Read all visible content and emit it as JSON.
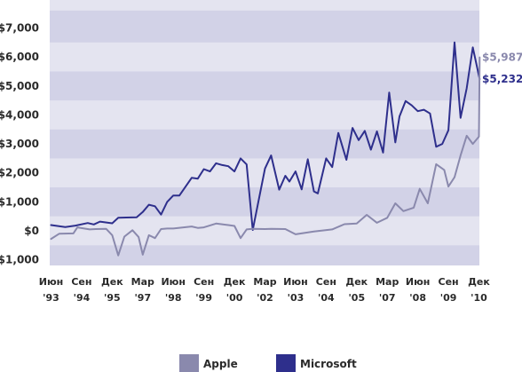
{
  "chart_data": {
    "type": "line",
    "title": "",
    "xlabel": "",
    "ylabel": "",
    "x_range": [
      1993.25,
      2010.95
    ],
    "ylim": [
      -1000,
      7600
    ],
    "y_ticks": [
      {
        "value": 7000,
        "label": "$7,000"
      },
      {
        "value": 6000,
        "label": "$6,000"
      },
      {
        "value": 5000,
        "label": "$5,000"
      },
      {
        "value": 4000,
        "label": "$4,000"
      },
      {
        "value": 3000,
        "label": "$3,000"
      },
      {
        "value": 2000,
        "label": "$2,000"
      },
      {
        "value": 1000,
        "label": "$1,000"
      },
      {
        "value": 0,
        "label": "$0"
      },
      {
        "value": -1000,
        "label": "-$1,000"
      }
    ],
    "x_ticks": [
      {
        "t": 1993.42,
        "month": "Июн",
        "year": "'93"
      },
      {
        "t": 1994.67,
        "month": "Сен",
        "year": "'94"
      },
      {
        "t": 1995.92,
        "month": "Дек",
        "year": "'95"
      },
      {
        "t": 1997.17,
        "month": "Мар",
        "year": "'97"
      },
      {
        "t": 1998.42,
        "month": "Июн",
        "year": "'98"
      },
      {
        "t": 1999.67,
        "month": "Сен",
        "year": "'99"
      },
      {
        "t": 2000.92,
        "month": "Дек",
        "year": "'00"
      },
      {
        "t": 2002.17,
        "month": "Мар",
        "year": "'02"
      },
      {
        "t": 2003.42,
        "month": "Июн",
        "year": "'03"
      },
      {
        "t": 2004.67,
        "month": "Сен",
        "year": "'04"
      },
      {
        "t": 2005.92,
        "month": "Дек",
        "year": "'05"
      },
      {
        "t": 2007.17,
        "month": "Мар",
        "year": "'07"
      },
      {
        "t": 2008.42,
        "month": "Июн",
        "year": "'08"
      },
      {
        "t": 2009.67,
        "month": "Сен",
        "year": "'09"
      },
      {
        "t": 2010.92,
        "month": "Дек",
        "year": "'10"
      }
    ],
    "grid_bands": true,
    "legend_position": "bottom",
    "series": [
      {
        "name": "Microsoft",
        "color": "#2e2f8c",
        "end_label": "$5,232",
        "points": [
          [
            1993.42,
            200
          ],
          [
            1994.0,
            130
          ],
          [
            1994.42,
            180
          ],
          [
            1994.92,
            270
          ],
          [
            1995.17,
            220
          ],
          [
            1995.42,
            320
          ],
          [
            1995.92,
            260
          ],
          [
            1996.17,
            450
          ],
          [
            1996.5,
            460
          ],
          [
            1996.92,
            470
          ],
          [
            1997.17,
            650
          ],
          [
            1997.42,
            900
          ],
          [
            1997.67,
            850
          ],
          [
            1997.92,
            560
          ],
          [
            1998.17,
            1000
          ],
          [
            1998.42,
            1220
          ],
          [
            1998.67,
            1220
          ],
          [
            1999.17,
            1830
          ],
          [
            1999.42,
            1800
          ],
          [
            1999.67,
            2130
          ],
          [
            1999.92,
            2050
          ],
          [
            2000.17,
            2330
          ],
          [
            2000.42,
            2270
          ],
          [
            2000.67,
            2230
          ],
          [
            2000.92,
            2050
          ],
          [
            2001.17,
            2500
          ],
          [
            2001.42,
            2290
          ],
          [
            2001.67,
            30
          ],
          [
            2002.17,
            2150
          ],
          [
            2002.42,
            2600
          ],
          [
            2002.75,
            1420
          ],
          [
            2003.0,
            1900
          ],
          [
            2003.17,
            1700
          ],
          [
            2003.42,
            2050
          ],
          [
            2003.67,
            1430
          ],
          [
            2003.92,
            2470
          ],
          [
            2004.17,
            1360
          ],
          [
            2004.33,
            1290
          ],
          [
            2004.67,
            2500
          ],
          [
            2004.92,
            2200
          ],
          [
            2005.17,
            3380
          ],
          [
            2005.5,
            2450
          ],
          [
            2005.75,
            3550
          ],
          [
            2006.0,
            3130
          ],
          [
            2006.25,
            3450
          ],
          [
            2006.5,
            2800
          ],
          [
            2006.75,
            3430
          ],
          [
            2007.0,
            2700
          ],
          [
            2007.25,
            4770
          ],
          [
            2007.5,
            3050
          ],
          [
            2007.67,
            3950
          ],
          [
            2007.92,
            4480
          ],
          [
            2008.17,
            4330
          ],
          [
            2008.42,
            4130
          ],
          [
            2008.67,
            4180
          ],
          [
            2008.92,
            4050
          ],
          [
            2009.17,
            2900
          ],
          [
            2009.42,
            3000
          ],
          [
            2009.67,
            3470
          ],
          [
            2009.92,
            6500
          ],
          [
            2010.17,
            3900
          ],
          [
            2010.42,
            4920
          ],
          [
            2010.67,
            6330
          ],
          [
            2010.95,
            5232
          ]
        ]
      },
      {
        "name": "Apple",
        "color": "#8a89ad",
        "end_label": "$5,987",
        "points": [
          [
            1993.42,
            -280
          ],
          [
            1993.75,
            -100
          ],
          [
            1994.33,
            -90
          ],
          [
            1994.5,
            120
          ],
          [
            1995.0,
            50
          ],
          [
            1995.25,
            60
          ],
          [
            1995.67,
            70
          ],
          [
            1995.92,
            -150
          ],
          [
            1996.17,
            -850
          ],
          [
            1996.42,
            -200
          ],
          [
            1996.75,
            20
          ],
          [
            1997.0,
            -210
          ],
          [
            1997.17,
            -820
          ],
          [
            1997.42,
            -150
          ],
          [
            1997.67,
            -250
          ],
          [
            1997.92,
            60
          ],
          [
            1998.17,
            80
          ],
          [
            1998.42,
            80
          ],
          [
            1999.17,
            150
          ],
          [
            1999.42,
            100
          ],
          [
            1999.67,
            120
          ],
          [
            2000.17,
            250
          ],
          [
            2000.67,
            200
          ],
          [
            2000.92,
            170
          ],
          [
            2001.17,
            -250
          ],
          [
            2001.42,
            50
          ],
          [
            2001.67,
            70
          ],
          [
            2002.17,
            60
          ],
          [
            2002.42,
            70
          ],
          [
            2003.0,
            60
          ],
          [
            2003.42,
            -120
          ],
          [
            2004.17,
            -20
          ],
          [
            2004.92,
            50
          ],
          [
            2005.42,
            230
          ],
          [
            2005.92,
            250
          ],
          [
            2006.33,
            550
          ],
          [
            2006.75,
            280
          ],
          [
            2007.17,
            450
          ],
          [
            2007.5,
            950
          ],
          [
            2007.83,
            680
          ],
          [
            2008.25,
            800
          ],
          [
            2008.5,
            1450
          ],
          [
            2008.83,
            950
          ],
          [
            2009.17,
            2300
          ],
          [
            2009.5,
            2100
          ],
          [
            2009.67,
            1530
          ],
          [
            2009.92,
            1850
          ],
          [
            2010.17,
            2600
          ],
          [
            2010.42,
            3280
          ],
          [
            2010.67,
            3000
          ],
          [
            2010.92,
            3250
          ],
          [
            2010.95,
            5987
          ]
        ]
      }
    ],
    "legend": [
      {
        "name": "Apple",
        "color": "#8a89ad"
      },
      {
        "name": "Microsoft",
        "color": "#2e2f8c"
      }
    ]
  }
}
